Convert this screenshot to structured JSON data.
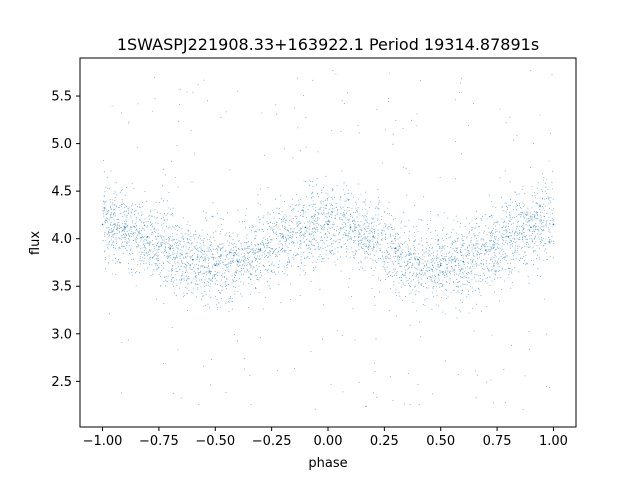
{
  "chart_data": {
    "type": "scatter",
    "title": "1SWASPJ221908.33+163922.1 Period 19314.87891s",
    "xlabel": "phase",
    "ylabel": "flux",
    "xlim": [
      -1.1,
      1.1
    ],
    "ylim": [
      2.02,
      5.9
    ],
    "x_ticks": [
      -1.0,
      -0.75,
      -0.5,
      -0.25,
      0.0,
      0.25,
      0.5,
      0.75,
      1.0
    ],
    "x_tick_labels": [
      "−1.00",
      "−0.75",
      "−0.50",
      "−0.25",
      "0.00",
      "0.25",
      "0.50",
      "0.75",
      "1.00"
    ],
    "y_ticks": [
      2.5,
      3.0,
      3.5,
      4.0,
      4.5,
      5.0,
      5.5
    ],
    "y_tick_labels": [
      "2.5",
      "3.0",
      "3.5",
      "4.0",
      "4.5",
      "5.0",
      "5.5"
    ],
    "point_color": "#1f77b4",
    "grid": false,
    "legend": "none",
    "series": [
      {
        "x": [
          -1.0,
          -0.9,
          -0.8,
          -0.7,
          -0.6,
          -0.5,
          -0.4,
          -0.3,
          -0.2,
          -0.1,
          0.0,
          0.1,
          0.2,
          0.3,
          0.4,
          0.5,
          0.6,
          0.7,
          0.8,
          0.9,
          1.0
        ],
        "y": [
          4.15,
          4.12,
          4.02,
          3.9,
          3.78,
          3.72,
          3.76,
          3.88,
          4.02,
          4.12,
          4.15,
          4.12,
          4.02,
          3.9,
          3.78,
          3.72,
          3.76,
          3.88,
          4.02,
          4.12,
          4.15
        ]
      }
    ]
  }
}
